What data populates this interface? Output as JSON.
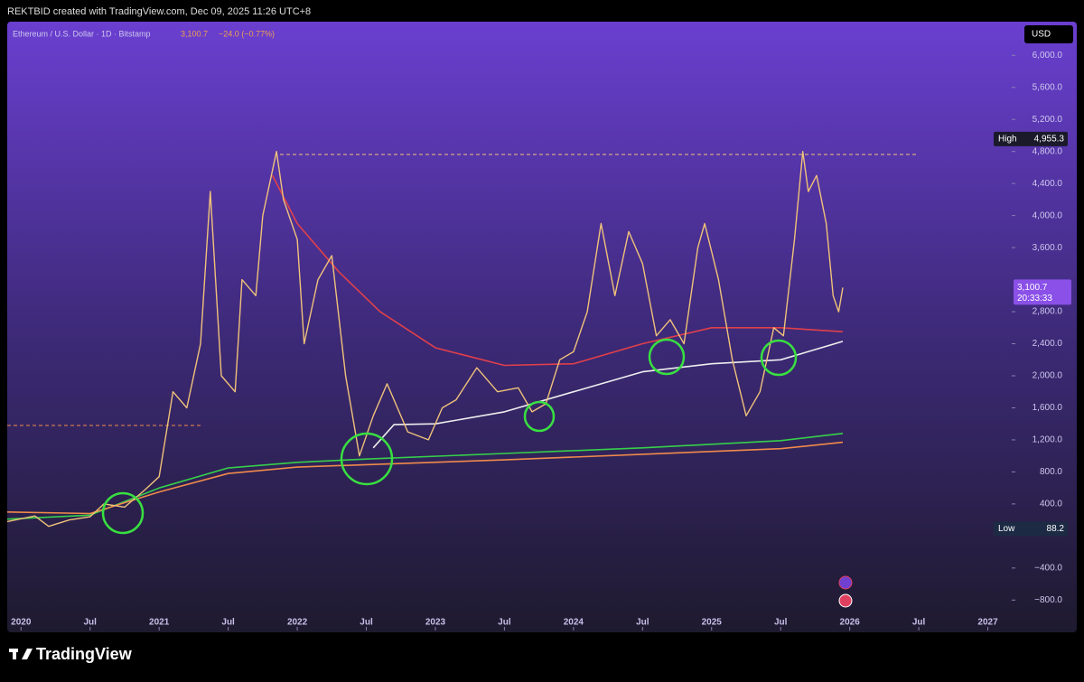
{
  "header": {
    "credit": "REKTBID created with TradingView.com, Dec 09, 2025 11:26 UTC+8",
    "brand": "TradingView"
  },
  "chart_data": {
    "type": "line",
    "title": "Ethereum / U.S. Dollar · 1D · Bitstamp",
    "currency": "USD",
    "last": {
      "value": 3100.7,
      "value_label": "3,100.7",
      "change": "−24.0 (−0.77%)",
      "countdown": "20:33:33"
    },
    "high": {
      "text": "High",
      "value": 4955.3,
      "value_label": "4,955.3"
    },
    "low": {
      "text": "Low",
      "value": 88.2,
      "value_label": "88.2"
    },
    "xlim": [
      2019.9,
      2027.16
    ],
    "xticks": [
      {
        "value": 2020,
        "label": "2020"
      },
      {
        "value": 2020.5,
        "label": "Jul"
      },
      {
        "value": 2021,
        "label": "2021"
      },
      {
        "value": 2021.5,
        "label": "Jul"
      },
      {
        "value": 2022,
        "label": "2022"
      },
      {
        "value": 2022.5,
        "label": "Jul"
      },
      {
        "value": 2023,
        "label": "2023"
      },
      {
        "value": 2023.5,
        "label": "Jul"
      },
      {
        "value": 2024,
        "label": "2024"
      },
      {
        "value": 2024.5,
        "label": "Jul"
      },
      {
        "value": 2025,
        "label": "2025"
      },
      {
        "value": 2025.5,
        "label": "Jul"
      },
      {
        "value": 2026,
        "label": "2026"
      },
      {
        "value": 2026.5,
        "label": "Jul"
      },
      {
        "value": 2027,
        "label": "2027"
      }
    ],
    "ylim": [
      -1180,
      6240
    ],
    "yticks": [
      {
        "value": 6000,
        "label": "6,000.0"
      },
      {
        "value": 5600,
        "label": "5,600.0"
      },
      {
        "value": 5200,
        "label": "5,200.0"
      },
      {
        "value": 4800,
        "label": "4,800.0"
      },
      {
        "value": 4400,
        "label": "4,400.0"
      },
      {
        "value": 4000,
        "label": "4,000.0"
      },
      {
        "value": 3600,
        "label": "3,600.0"
      },
      {
        "value": 2800,
        "label": "2,800.0"
      },
      {
        "value": 2400,
        "label": "2,400.0"
      },
      {
        "value": 2000,
        "label": "2,000.0"
      },
      {
        "value": 1600,
        "label": "1,600.0"
      },
      {
        "value": 1200,
        "label": "1,200.0"
      },
      {
        "value": 800,
        "label": "800.0"
      },
      {
        "value": 400,
        "label": "400.0"
      },
      {
        "value": -400,
        "label": "−400.0"
      },
      {
        "value": -800,
        "label": "−800.0"
      }
    ],
    "series": [
      {
        "color": "#f0c27a",
        "x": [
          2019.9,
          2020.1,
          2020.2,
          2020.35,
          2020.5,
          2020.6,
          2020.75,
          2020.9,
          2021.0,
          2021.1,
          2021.2,
          2021.3,
          2021.37,
          2021.45,
          2021.55,
          2021.6,
          2021.7,
          2021.75,
          2021.85,
          2021.9,
          2022.0,
          2022.05,
          2022.15,
          2022.25,
          2022.35,
          2022.45,
          2022.55,
          2022.65,
          2022.8,
          2022.95,
          2023.05,
          2023.15,
          2023.3,
          2023.45,
          2023.6,
          2023.7,
          2023.8,
          2023.9,
          2024.0,
          2024.1,
          2024.2,
          2024.3,
          2024.4,
          2024.5,
          2024.6,
          2024.7,
          2024.8,
          2024.9,
          2024.95,
          2025.05,
          2025.15,
          2025.25,
          2025.35,
          2025.45,
          2025.52,
          2025.6,
          2025.66,
          2025.7,
          2025.76,
          2025.83,
          2025.88,
          2025.92,
          2025.95
        ],
        "values": [
          180,
          250,
          120,
          200,
          240,
          400,
          360,
          580,
          740,
          1800,
          1600,
          2400,
          4300,
          2000,
          1800,
          3200,
          3000,
          4000,
          4800,
          4200,
          3700,
          2400,
          3200,
          3500,
          2000,
          1000,
          1500,
          1900,
          1300,
          1200,
          1600,
          1700,
          2100,
          1800,
          1850,
          1550,
          1650,
          2200,
          2300,
          2800,
          3900,
          3000,
          3800,
          3400,
          2500,
          2700,
          2400,
          3600,
          3900,
          3200,
          2200,
          1500,
          1800,
          2600,
          2500,
          3700,
          4800,
          4300,
          4500,
          3900,
          3000,
          2800,
          3100.7
        ]
      },
      {
        "color": "#e0404a",
        "x": [
          2021.82,
          2022.0,
          2022.3,
          2022.6,
          2023.0,
          2023.5,
          2024.0,
          2024.5,
          2025.0,
          2025.5,
          2025.95
        ],
        "values": [
          4500,
          3900,
          3300,
          2800,
          2350,
          2130,
          2150,
          2400,
          2600,
          2600,
          2550
        ]
      },
      {
        "color": "#eeeeee",
        "x": [
          2022.55,
          2022.7,
          2023.0,
          2023.5,
          2024.0,
          2024.5,
          2025.0,
          2025.5,
          2025.95
        ],
        "values": [
          1100,
          1390,
          1400,
          1550,
          1800,
          2050,
          2150,
          2200,
          2430
        ]
      },
      {
        "color": "#35d04a",
        "x": [
          2019.9,
          2020.5,
          2021.0,
          2021.5,
          2022.0,
          2022.5,
          2023.5,
          2024.5,
          2025.5,
          2025.95
        ],
        "values": [
          210,
          260,
          600,
          850,
          920,
          960,
          1030,
          1100,
          1190,
          1280
        ]
      },
      {
        "color": "#f08a4b",
        "x": [
          2019.9,
          2020.5,
          2021.0,
          2021.5,
          2022.0,
          2022.5,
          2023.5,
          2024.5,
          2025.5,
          2025.95
        ],
        "values": [
          300,
          280,
          550,
          780,
          860,
          890,
          950,
          1020,
          1090,
          1170
        ]
      }
    ]
  }
}
